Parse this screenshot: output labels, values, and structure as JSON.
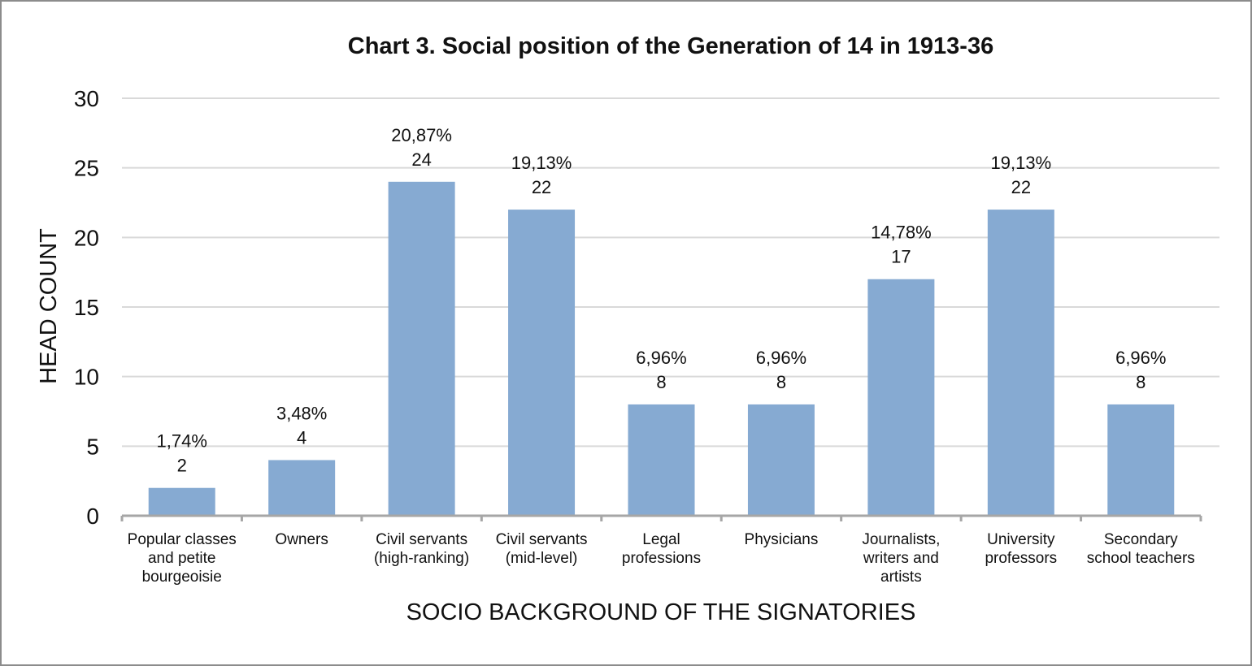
{
  "chart_data": {
    "type": "bar",
    "title": "Chart 3. Social position of the Generation of 14 in 1913-36",
    "xlabel": "SOCIO BACKGROUND OF THE SIGNATORIES",
    "ylabel": "HEAD COUNT",
    "ylim": [
      0,
      30
    ],
    "yticks": [
      "0",
      "5",
      "10",
      "15",
      "20",
      "25",
      "30"
    ],
    "grid": true,
    "categories": [
      [
        "Popular classes",
        "and petite",
        "bourgeoisie"
      ],
      [
        "Owners"
      ],
      [
        "Civil servants",
        "(high-ranking)"
      ],
      [
        "Civil servants",
        "(mid-level)"
      ],
      [
        "Legal",
        "professions"
      ],
      [
        "Physicians"
      ],
      [
        "Journalists,",
        "writers and",
        "artists"
      ],
      [
        "University",
        "professors"
      ],
      [
        "Secondary",
        "school teachers"
      ]
    ],
    "values": [
      2,
      4,
      24,
      22,
      8,
      8,
      17,
      22,
      8
    ],
    "percent_labels": [
      "1,74%",
      "3,48%",
      "20,87%",
      "19,13%",
      "6,96%",
      "6,96%",
      "14,78%",
      "19,13%",
      "6,96%"
    ],
    "colors": {
      "bar": "#86aad2",
      "grid": "#d9d9d9",
      "axis": "#a6a6a6"
    }
  }
}
